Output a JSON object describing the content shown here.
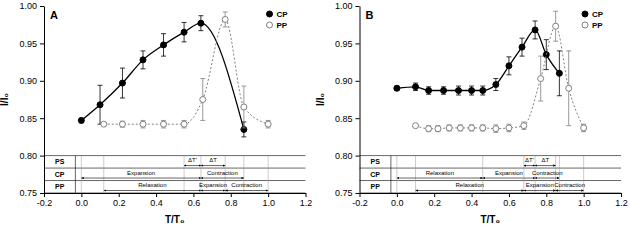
{
  "chart_data": [
    {
      "type": "line",
      "title": "A",
      "x_label": "T/T₀",
      "y_label": "I/I₀",
      "xlim": [
        -0.2,
        1.2
      ],
      "xticks": [
        -0.2,
        {
          "value": 0.0,
          "label": "0.0"
        },
        0.2,
        0.4,
        0.6,
        0.8,
        {
          "value": 1.0,
          "label": "1.0"
        },
        1.2
      ],
      "ylim": [
        0.75,
        1.0
      ],
      "yticks": [
        0.75,
        {
          "value": 0.8,
          "label": "0.80"
        },
        0.85,
        {
          "value": 0.9,
          "label": "0.90"
        },
        0.95,
        {
          "value": 1.0,
          "label": "1.00"
        }
      ],
      "legend": "upper right",
      "series": [
        {
          "name": "CP",
          "color": "#000000",
          "marker": "circle",
          "line_style": "solid",
          "x": [
            0.0,
            0.1,
            0.22,
            0.33,
            0.44,
            0.55,
            0.64,
            0.87
          ],
          "values": [
            0.847,
            0.868,
            0.897,
            0.928,
            0.948,
            0.965,
            0.977,
            0.835
          ],
          "errors": [
            0.003,
            0.026,
            0.02,
            0.012,
            0.015,
            0.013,
            0.01,
            0.01
          ]
        },
        {
          "name": "PP",
          "color": "#808080",
          "marker": "open-circle",
          "line_style": "dotted",
          "x": [
            0.12,
            0.22,
            0.33,
            0.44,
            0.55,
            0.65,
            0.77,
            0.87,
            1.0
          ],
          "values": [
            0.842,
            0.842,
            0.842,
            0.842,
            0.842,
            0.875,
            0.982,
            0.865,
            0.842
          ],
          "errors": [
            0.002,
            0.004,
            0.005,
            0.005,
            0.005,
            0.028,
            0.01,
            0.028,
            0.005
          ]
        }
      ],
      "phase_table": {
        "rows": [
          "PS",
          "CP",
          "PP"
        ],
        "spans": [
          {
            "row": 0,
            "label": "ΔT'",
            "from": 0.55,
            "to": 0.64
          },
          {
            "row": 0,
            "label": "ΔT",
            "from": 0.64,
            "to": 0.77
          },
          {
            "row": 1,
            "label": "Expansion",
            "from": 0.0,
            "to": 0.64
          },
          {
            "row": 1,
            "label": "Contraction",
            "from": 0.64,
            "to": 0.87
          },
          {
            "row": 2,
            "label": "Relaxation",
            "from": 0.12,
            "to": 0.64
          },
          {
            "row": 2,
            "label": "Expansion",
            "from": 0.64,
            "to": 0.77
          },
          {
            "row": 2,
            "label": "Contraction",
            "from": 0.77,
            "to": 1.0
          }
        ]
      }
    },
    {
      "type": "line",
      "title": "B",
      "x_label": "T/T₀",
      "y_label": "I/I₀",
      "xlim": [
        -0.2,
        1.2
      ],
      "xticks": [
        -0.2,
        {
          "value": 0.0,
          "label": "0.0"
        },
        0.2,
        0.4,
        0.6,
        0.8,
        {
          "value": 1.0,
          "label": "1.0"
        },
        1.2
      ],
      "ylim": [
        0.75,
        1.0
      ],
      "yticks": [
        0.75,
        {
          "value": 0.8,
          "label": "0.80"
        },
        0.85,
        {
          "value": 0.9,
          "label": "0.90"
        },
        0.95,
        {
          "value": 1.0,
          "label": "1.00"
        }
      ],
      "legend": "upper right",
      "series": [
        {
          "name": "CP",
          "color": "#000000",
          "marker": "circle",
          "line_style": "solid",
          "x": [
            0.0,
            0.1,
            0.17,
            0.25,
            0.33,
            0.4,
            0.46,
            0.53,
            0.6,
            0.67,
            0.74,
            0.8,
            0.87
          ],
          "values": [
            0.89,
            0.892,
            0.887,
            0.887,
            0.887,
            0.887,
            0.887,
            0.895,
            0.92,
            0.945,
            0.968,
            0.935,
            0.91
          ],
          "errors": [
            0.003,
            0.005,
            0.005,
            0.005,
            0.006,
            0.006,
            0.006,
            0.008,
            0.012,
            0.012,
            0.012,
            0.02,
            0.03
          ]
        },
        {
          "name": "PP",
          "color": "#808080",
          "marker": "open-circle",
          "line_style": "dotted",
          "x": [
            0.1,
            0.17,
            0.22,
            0.28,
            0.34,
            0.4,
            0.46,
            0.53,
            0.6,
            0.68,
            0.77,
            0.85,
            0.92,
            1.0
          ],
          "values": [
            0.84,
            0.836,
            0.836,
            0.837,
            0.837,
            0.837,
            0.837,
            0.836,
            0.837,
            0.84,
            0.903,
            0.973,
            0.89,
            0.837
          ],
          "errors": [
            0.002,
            0.004,
            0.004,
            0.004,
            0.004,
            0.004,
            0.004,
            0.005,
            0.005,
            0.005,
            0.03,
            0.02,
            0.05,
            0.005
          ]
        }
      ],
      "phase_table": {
        "rows": [
          "PS",
          "CP",
          "PP"
        ],
        "spans": [
          {
            "row": 0,
            "label": "ΔT'",
            "from": 0.68,
            "to": 0.74
          },
          {
            "row": 0,
            "label": "ΔT",
            "from": 0.74,
            "to": 0.85
          },
          {
            "row": 1,
            "label": "Relaxation",
            "from": 0.0,
            "to": 0.46
          },
          {
            "row": 1,
            "label": "Expansion",
            "from": 0.46,
            "to": 0.74
          },
          {
            "row": 1,
            "label": "Contraction",
            "from": 0.74,
            "to": 0.87
          },
          {
            "row": 2,
            "label": "Relaxation",
            "from": 0.1,
            "to": 0.68
          },
          {
            "row": 2,
            "label": "Expansion",
            "from": 0.68,
            "to": 0.85
          },
          {
            "row": 2,
            "label": "Contraction",
            "from": 0.85,
            "to": 1.0
          }
        ]
      }
    }
  ]
}
